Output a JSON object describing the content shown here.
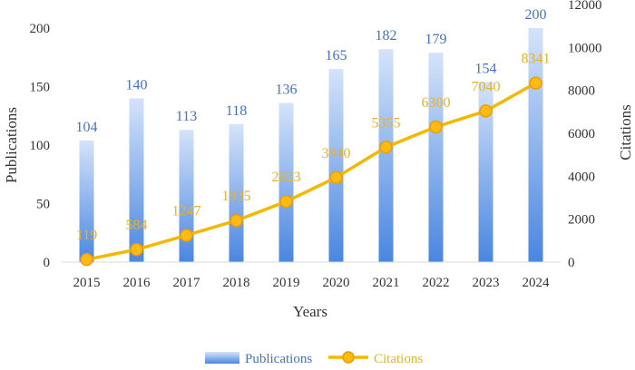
{
  "chart_data": {
    "type": "bar",
    "xlabel": "Years",
    "ylabel_left": "Publications",
    "ylabel_right": "Citations",
    "categories": [
      "2015",
      "2016",
      "2017",
      "2018",
      "2019",
      "2020",
      "2021",
      "2022",
      "2023",
      "2024"
    ],
    "ylim_left": [
      0,
      200
    ],
    "ylim_right": [
      0,
      12000
    ],
    "yticks_left": [
      0,
      50,
      100,
      150,
      200
    ],
    "yticks_right": [
      0,
      2000,
      4000,
      6000,
      8000,
      10000,
      12000
    ],
    "grid": false,
    "legend_position": "bottom",
    "series": [
      {
        "name": "Publications",
        "type": "bar",
        "axis": "left",
        "values": [
          104,
          140,
          113,
          118,
          136,
          165,
          182,
          179,
          154,
          200
        ],
        "color": "#5B8FE0"
      },
      {
        "name": "Citations",
        "type": "line",
        "axis": "right",
        "values": [
          119,
          584,
          1247,
          1935,
          2823,
          3940,
          5355,
          6300,
          7040,
          8341
        ],
        "color": "#F5B800"
      }
    ]
  },
  "colors": {
    "bar_top": "#D4E3FA",
    "bar_bottom": "#4A86E0",
    "bar_label": "#4472C4",
    "line": "#F5B800",
    "marker_fill": "#FDBA12",
    "marker_stroke": "#E8A000",
    "line_label": "#E8B22A",
    "axis": "#D9D9D9",
    "text": "#333333"
  }
}
